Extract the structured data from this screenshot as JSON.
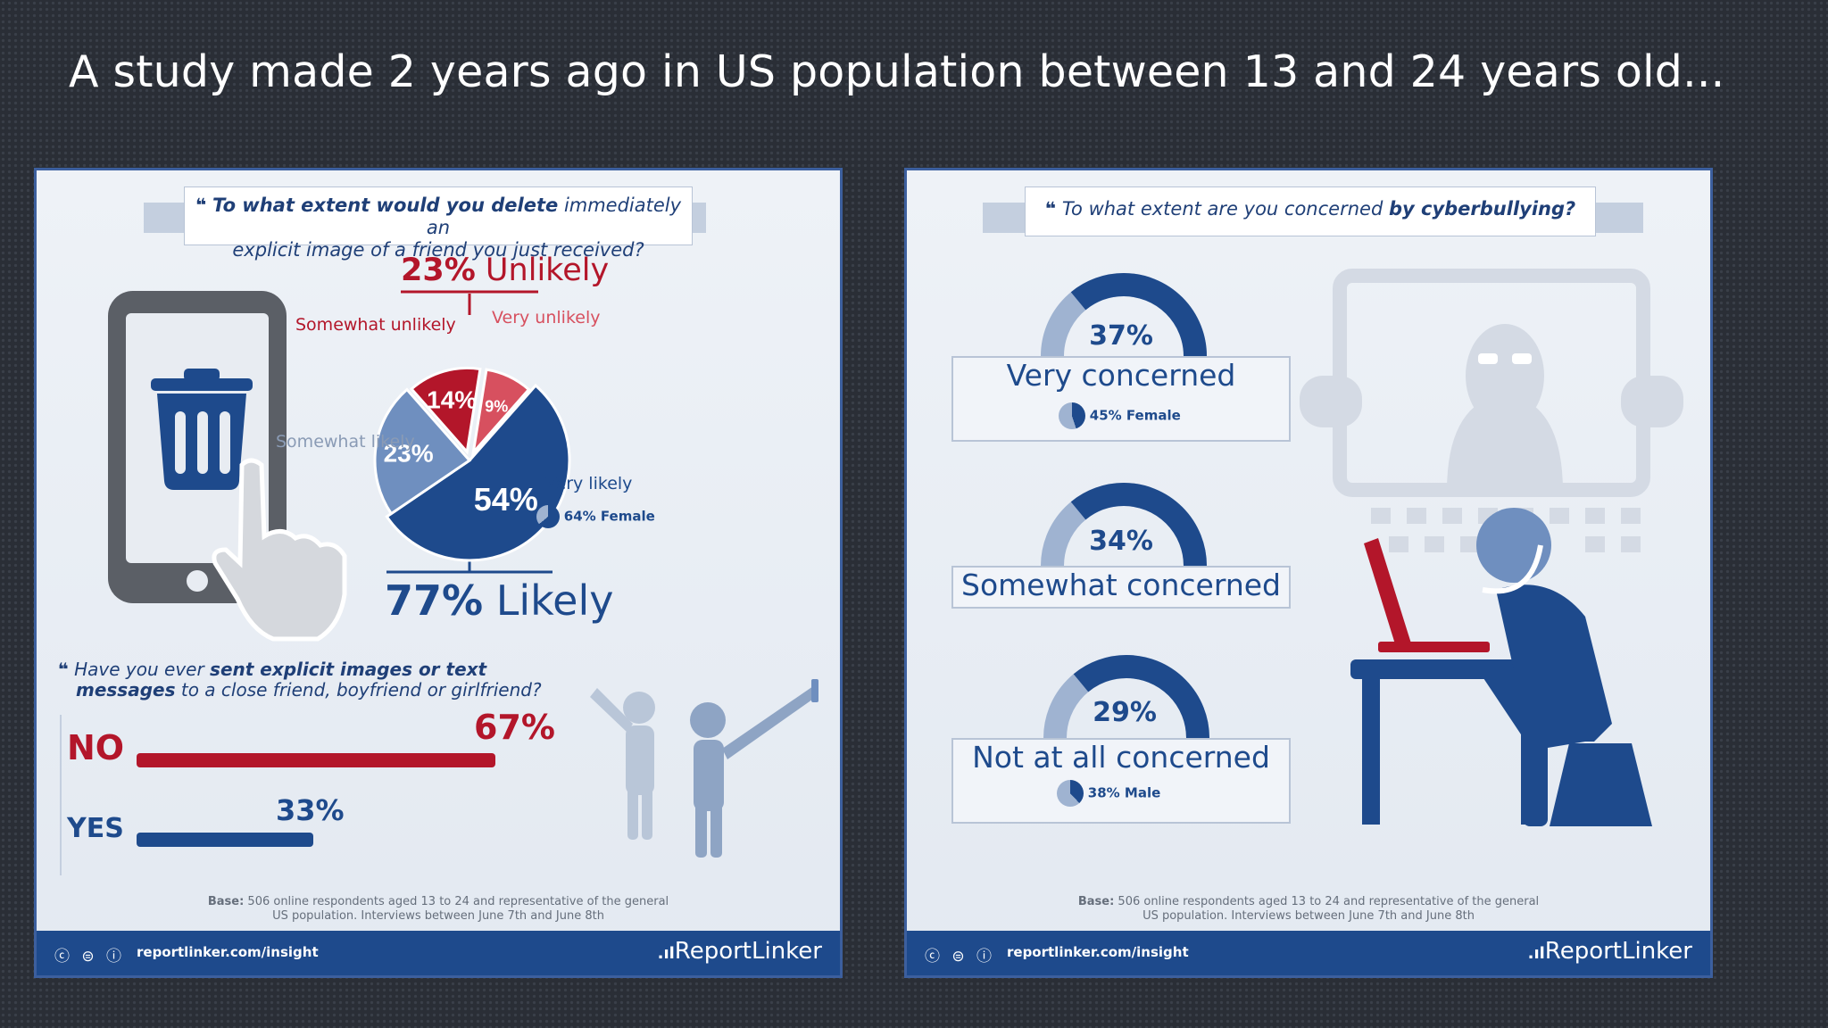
{
  "slide": {
    "title": "A study made 2 years ago in US population between 13 and 24 years old..."
  },
  "left_panel": {
    "question1": {
      "quote_mark": "❝",
      "line1_bold": "To what extent would you delete",
      "line1_rest": "immediately an",
      "line2": "explicit image of a friend you just received?"
    },
    "unlikely_total": {
      "pct": "23%",
      "label": "Unlikely"
    },
    "likely_total": {
      "pct": "77%",
      "label": "Likely"
    },
    "labels": {
      "somewhat_unlikely": "Somewhat unlikely",
      "very_unlikely": "Very unlikely",
      "somewhat_likely": "Somewhat likely",
      "very_likely": "Very likely",
      "very_likely_female": "64% Female"
    },
    "question2": {
      "quote_mark": "❝",
      "line1_plain": "Have you ever",
      "line1_bold": "sent explicit images or text",
      "line2_bold": "messages",
      "line2_rest": "to a close friend, boyfriend or girlfriend?"
    },
    "bars": {
      "no_label": "NO",
      "no_pct": "67%",
      "yes_label": "YES",
      "yes_pct": "33%"
    },
    "base_note": {
      "bold": "Base:",
      "line1": "506 online respondents aged 13 to 24 and representative of the general",
      "line2": "US population. Interviews between June 7th and June 8th"
    },
    "footer": {
      "cc_icons": "ⓒ ⊜ ⓘ",
      "url": "reportlinker.com/insight",
      "brand": "ReportLinker"
    }
  },
  "right_panel": {
    "question": {
      "quote_mark": "❝",
      "plain": "To what extent are you concerned",
      "bold": "by cyberbullying?"
    },
    "items": [
      {
        "pct": "37%",
        "label": "Very concerned",
        "sub": "45% Female"
      },
      {
        "pct": "34%",
        "label": "Somewhat concerned",
        "sub": ""
      },
      {
        "pct": "29%",
        "label": "Not at all concerned",
        "sub": "38% Male"
      }
    ],
    "base_note": {
      "bold": "Base:",
      "line1": "506 online respondents aged 13 to 24 and representative of the general",
      "line2": "US population. Interviews between June 7th and June 8th"
    },
    "footer": {
      "cc_icons": "ⓒ ⊜ ⓘ",
      "url": "reportlinker.com/insight",
      "brand": "ReportLinker"
    }
  },
  "colors": {
    "navy": "#1e4a8c",
    "mid_blue": "#6f8fbf",
    "light_blue": "#9fb3d1",
    "red": "#b3162a",
    "pink": "#d7505f",
    "gray": "#c9d0da"
  },
  "chart_data": [
    {
      "type": "pie",
      "title": "To what extent would you delete immediately an explicit image of a friend you just received?",
      "categories": [
        "Very likely",
        "Somewhat likely",
        "Somewhat unlikely",
        "Very unlikely"
      ],
      "values": [
        54,
        23,
        14,
        9
      ],
      "colors": [
        "#1e4a8c",
        "#6f8fbf",
        "#b3162a",
        "#d7505f"
      ]
    },
    {
      "type": "bar",
      "title": "Have you ever sent explicit images or text messages to a close friend, boyfriend or girlfriend?",
      "categories": [
        "NO",
        "YES"
      ],
      "values": [
        67,
        33
      ],
      "colors": [
        "#b3162a",
        "#1e4a8c"
      ]
    },
    {
      "type": "pie",
      "title": "To what extent are you concerned by cyberbullying?",
      "categories": [
        "Very concerned",
        "Somewhat concerned",
        "Not at all concerned"
      ],
      "values": [
        37,
        34,
        29
      ]
    }
  ]
}
